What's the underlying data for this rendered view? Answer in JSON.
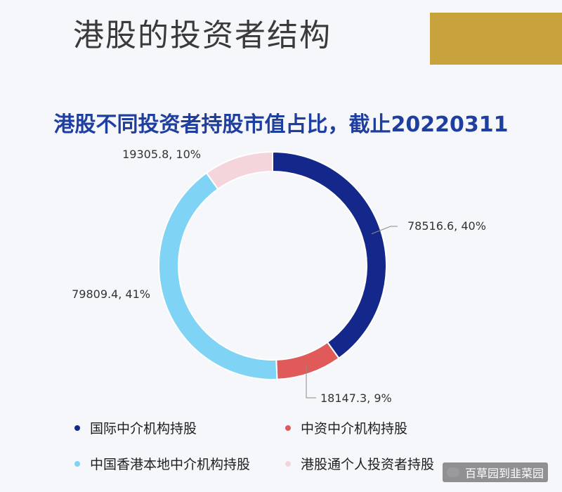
{
  "page": {
    "title": "港股的投资者结构",
    "accent_color": "#c8a23a",
    "watermark": "百草园到韭菜园"
  },
  "chart_data": {
    "type": "pie",
    "variant": "donut",
    "title": "港股不同投资者持股市值占比，截止20220311",
    "series": [
      {
        "name": "国际中介机构持股",
        "value": 78516.6,
        "percent": 40,
        "label": "78516.6, 40%",
        "color": "#13288a"
      },
      {
        "name": "中资中介机构持股",
        "value": 18147.3,
        "percent": 9,
        "label": "18147.3, 9%",
        "color": "#e05a5a"
      },
      {
        "name": "中国香港本地中介机构持股",
        "value": 79809.4,
        "percent": 41,
        "label": "79809.4, 41%",
        "color": "#7fd3f4"
      },
      {
        "name": "港股通个人投资者持股",
        "value": 19305.8,
        "percent": 10,
        "label": "19305.8, 10%",
        "color": "#f4d5dc"
      }
    ],
    "start_angle": "top",
    "direction": "clockwise",
    "legend_position": "bottom"
  }
}
